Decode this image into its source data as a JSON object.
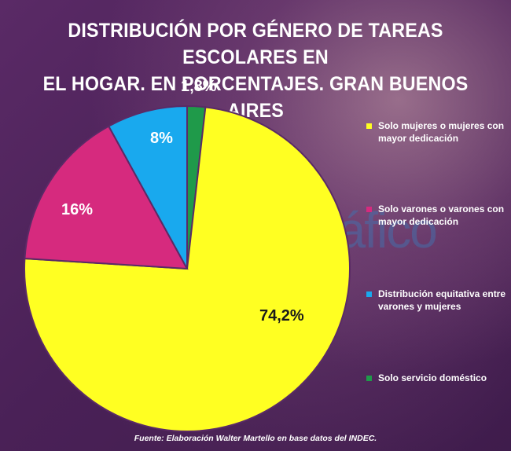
{
  "title_lines": [
    "DISTRIBUCIÓN POR GÉNERO DE TAREAS ESCOLARES EN",
    "EL HOGAR. EN PORCENTAJES. GRAN BUENOS AIRES"
  ],
  "watermark": "ElCorreoGráfico",
  "source": "Fuente: Elaboración Walter Martello en base datos del INDEC.",
  "chart_data": {
    "type": "pie",
    "title": "DISTRIBUCIÓN POR GÉNERO DE TAREAS ESCOLARES EN EL HOGAR. EN PORCENTAJES. GRAN BUENOS AIRES",
    "legend_position": "right",
    "slices": [
      {
        "label": "Solo mujeres o mujeres con mayor dedicación",
        "value": 74.2,
        "value_label": "74,2%",
        "color": "#ffff22"
      },
      {
        "label": "Solo varones o varones con mayor dedicación",
        "value": 16,
        "value_label": "16%",
        "color": "#d62a7e"
      },
      {
        "label": "Distribución equitativa entre varones y mujeres",
        "value": 8,
        "value_label": "8%",
        "color": "#19a9ee"
      },
      {
        "label": "Solo servicio doméstico",
        "value": 1.8,
        "value_label": "1,8%",
        "color": "#1f9a4a"
      }
    ]
  }
}
